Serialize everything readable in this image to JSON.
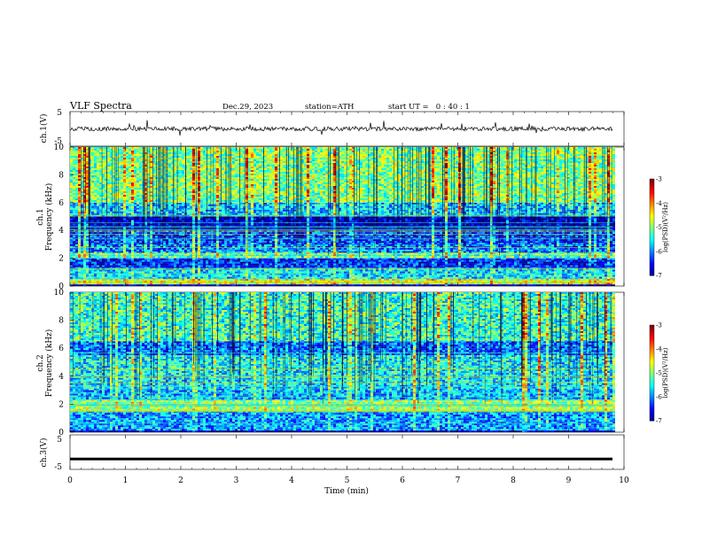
{
  "header": {
    "title": "VLF Spectra",
    "date": "Dec.29, 2023",
    "station": "station=ATH",
    "start": "start UT =   0 : 40 : 1"
  },
  "chart_data": [
    {
      "type": "line",
      "name": "ch1-waveform",
      "ylabel": "ch.1(V)",
      "ylim": [
        -5,
        5
      ],
      "yticks": [
        "5",
        "-5"
      ],
      "xlim": [
        0,
        10
      ],
      "x_end": 9.8,
      "baseline": 0
    },
    {
      "type": "heatmap",
      "name": "ch1-spectrogram",
      "ylabel_line1": "ch.1",
      "ylabel_line2": "Frequency (kHz)",
      "ylim": [
        0,
        10
      ],
      "yticks": [
        "0",
        "2",
        "4",
        "6",
        "8",
        "10"
      ],
      "xlim": [
        0,
        10
      ],
      "x_end": 9.8,
      "colorbar": {
        "label": "log(PSD)(V²/Hz)",
        "range": [
          -7,
          -3
        ],
        "ticks": [
          "-3",
          "-4",
          "-5",
          "-6",
          "-7"
        ]
      },
      "bands": [
        {
          "f0": 0.0,
          "f1": 0.12,
          "level": -7
        },
        {
          "f0": 0.12,
          "f1": 0.5,
          "level": -4.6
        },
        {
          "f0": 0.5,
          "f1": 1.3,
          "level": -5.6
        },
        {
          "f0": 1.3,
          "f1": 2.0,
          "level": -6.4
        },
        {
          "f0": 2.0,
          "f1": 2.4,
          "level": -5.2
        },
        {
          "f0": 2.4,
          "f1": 3.0,
          "level": -6.0
        },
        {
          "f0": 3.0,
          "f1": 4.0,
          "level": -6.3
        },
        {
          "f0": 4.0,
          "f1": 5.0,
          "level": -6.8
        },
        {
          "f0": 5.0,
          "f1": 6.0,
          "level": -5.7
        },
        {
          "f0": 6.0,
          "f1": 10.0,
          "level": -5.0
        }
      ]
    },
    {
      "type": "heatmap",
      "name": "ch2-spectrogram",
      "ylabel_line1": "ch.2",
      "ylabel_line2": "Frequency (kHz)",
      "ylim": [
        0,
        10
      ],
      "yticks": [
        "0",
        "2",
        "4",
        "6",
        "8",
        "10"
      ],
      "xlim": [
        0,
        10
      ],
      "x_end": 9.8,
      "colorbar": {
        "label": "log(PSD)(V²/Hz)",
        "range": [
          -7,
          -3
        ],
        "ticks": [
          "-3",
          "-4",
          "-5",
          "-6",
          "-7"
        ]
      },
      "bands": [
        {
          "f0": 0.0,
          "f1": 0.12,
          "level": -7
        },
        {
          "f0": 0.12,
          "f1": 1.5,
          "level": -5.9
        },
        {
          "f0": 1.5,
          "f1": 2.3,
          "level": -4.9
        },
        {
          "f0": 2.3,
          "f1": 3.0,
          "level": -5.8
        },
        {
          "f0": 3.0,
          "f1": 4.0,
          "level": -5.6
        },
        {
          "f0": 4.0,
          "f1": 5.5,
          "level": -5.5
        },
        {
          "f0": 5.5,
          "f1": 6.5,
          "level": -6.1
        },
        {
          "f0": 6.5,
          "f1": 10.0,
          "level": -5.3
        }
      ]
    },
    {
      "type": "line",
      "name": "ch3-waveform",
      "ylabel": "ch.3(V)",
      "ylim": [
        -5,
        5
      ],
      "yticks": [
        "5",
        "-5"
      ],
      "xlim": [
        0,
        10
      ],
      "x_end": 9.8,
      "baseline": -2
    }
  ],
  "xaxis": {
    "label": "Time (min)",
    "ticks": [
      "0",
      "1",
      "2",
      "3",
      "4",
      "5",
      "6",
      "7",
      "8",
      "9",
      "10"
    ]
  }
}
